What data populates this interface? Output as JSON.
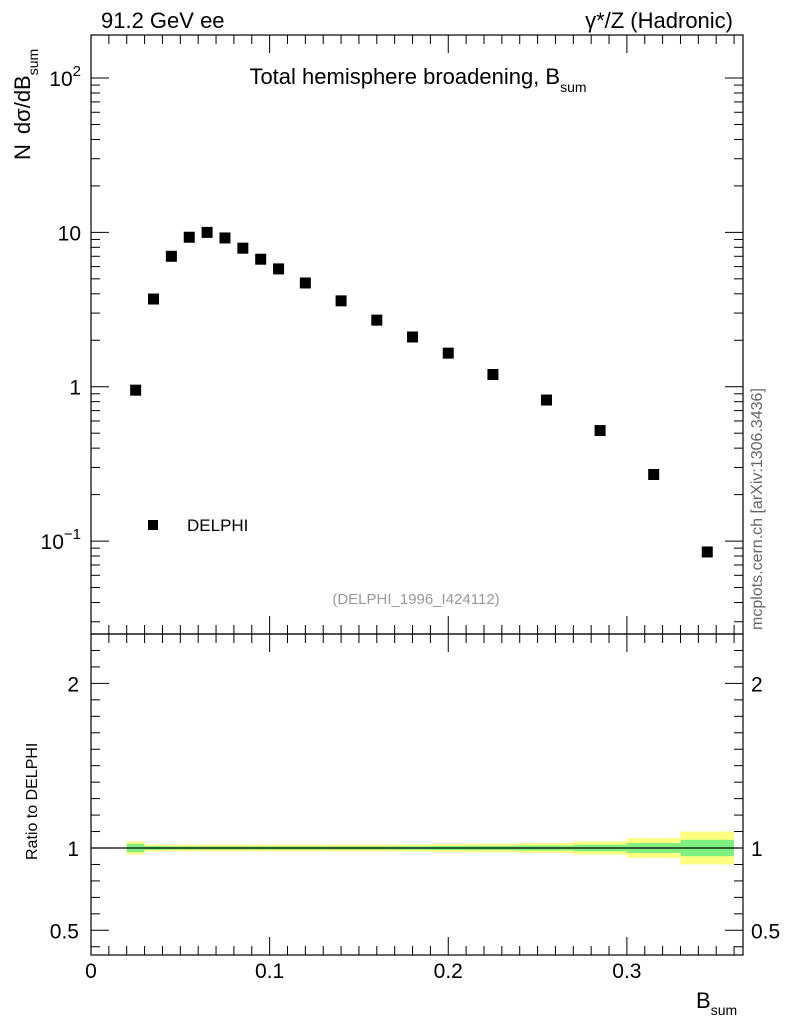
{
  "header": {
    "left": "91.2 GeV ee",
    "right": "γ*/Z (Hadronic)"
  },
  "watermark": "mcplots.cern.ch [arXiv:1306.3436]",
  "chart_data": [
    {
      "type": "scatter",
      "title": "Total hemisphere broadening, B",
      "title_sub": "sum",
      "ylabel_prefix": "N",
      "ylabel": "dσ/dB",
      "ylabel_sub": "sum",
      "yscale": "log",
      "xlim": [
        0,
        0.365
      ],
      "ylim": [
        0.025,
        190
      ],
      "x_ticks": [
        "0",
        "0.1",
        "0.2",
        "0.3"
      ],
      "y_ticks": [
        {
          "value": 100,
          "base": "10",
          "exp": "2"
        },
        {
          "value": 10,
          "label": "10"
        },
        {
          "value": 1,
          "label": "1"
        },
        {
          "value": 0.1,
          "base": "10",
          "exp": "−1"
        }
      ],
      "legend": {
        "placement": "bottom-left",
        "label": "DELPHI"
      },
      "analysis_tag": "(DELPHI_1996_I424112)",
      "series": [
        {
          "name": "DELPHI",
          "x": [
            0.025,
            0.035,
            0.045,
            0.055,
            0.065,
            0.075,
            0.085,
            0.095,
            0.105,
            0.12,
            0.14,
            0.16,
            0.18,
            0.2,
            0.225,
            0.255,
            0.285,
            0.315,
            0.345
          ],
          "y": [
            0.95,
            3.7,
            7.0,
            9.3,
            10.0,
            9.2,
            7.9,
            6.7,
            5.8,
            4.7,
            3.6,
            2.7,
            2.1,
            1.65,
            1.2,
            0.82,
            0.52,
            0.27,
            0.085
          ]
        }
      ]
    },
    {
      "type": "band",
      "ylabel": "Ratio to DELPHI",
      "xlabel": "B",
      "xlabel_sub": "sum",
      "xlim": [
        0,
        0.365
      ],
      "ylim": [
        0.35,
        2.3
      ],
      "y_ticks": [
        "0.5",
        "1",
        "2"
      ],
      "x_ticks": [
        "0",
        "0.1",
        "0.2",
        "0.3"
      ],
      "reference": 1,
      "bins": [
        {
          "x0": 0.02,
          "x1": 0.03,
          "stat": 0.025,
          "tot": 0.04
        },
        {
          "x0": 0.03,
          "x1": 0.04,
          "stat": 0.012,
          "tot": 0.022
        },
        {
          "x0": 0.04,
          "x1": 0.05,
          "stat": 0.01,
          "tot": 0.02
        },
        {
          "x0": 0.05,
          "x1": 0.06,
          "stat": 0.01,
          "tot": 0.02
        },
        {
          "x0": 0.06,
          "x1": 0.07,
          "stat": 0.01,
          "tot": 0.02
        },
        {
          "x0": 0.07,
          "x1": 0.08,
          "stat": 0.01,
          "tot": 0.02
        },
        {
          "x0": 0.08,
          "x1": 0.09,
          "stat": 0.01,
          "tot": 0.02
        },
        {
          "x0": 0.09,
          "x1": 0.1,
          "stat": 0.01,
          "tot": 0.02
        },
        {
          "x0": 0.1,
          "x1": 0.11,
          "stat": 0.01,
          "tot": 0.02
        },
        {
          "x0": 0.11,
          "x1": 0.13,
          "stat": 0.01,
          "tot": 0.02
        },
        {
          "x0": 0.13,
          "x1": 0.15,
          "stat": 0.01,
          "tot": 0.02
        },
        {
          "x0": 0.15,
          "x1": 0.17,
          "stat": 0.01,
          "tot": 0.02
        },
        {
          "x0": 0.17,
          "x1": 0.19,
          "stat": 0.011,
          "tot": 0.022
        },
        {
          "x0": 0.19,
          "x1": 0.21,
          "stat": 0.012,
          "tot": 0.024
        },
        {
          "x0": 0.21,
          "x1": 0.24,
          "stat": 0.013,
          "tot": 0.026
        },
        {
          "x0": 0.24,
          "x1": 0.27,
          "stat": 0.015,
          "tot": 0.03
        },
        {
          "x0": 0.27,
          "x1": 0.3,
          "stat": 0.02,
          "tot": 0.04
        },
        {
          "x0": 0.3,
          "x1": 0.33,
          "stat": 0.03,
          "tot": 0.06
        },
        {
          "x0": 0.33,
          "x1": 0.36,
          "stat": 0.05,
          "tot": 0.1
        }
      ]
    }
  ],
  "colors": {
    "band_stat": "#7ff07f",
    "band_total": "#ffff80",
    "marker": "#000000",
    "tag": "#999999",
    "watermark": "#666666"
  }
}
